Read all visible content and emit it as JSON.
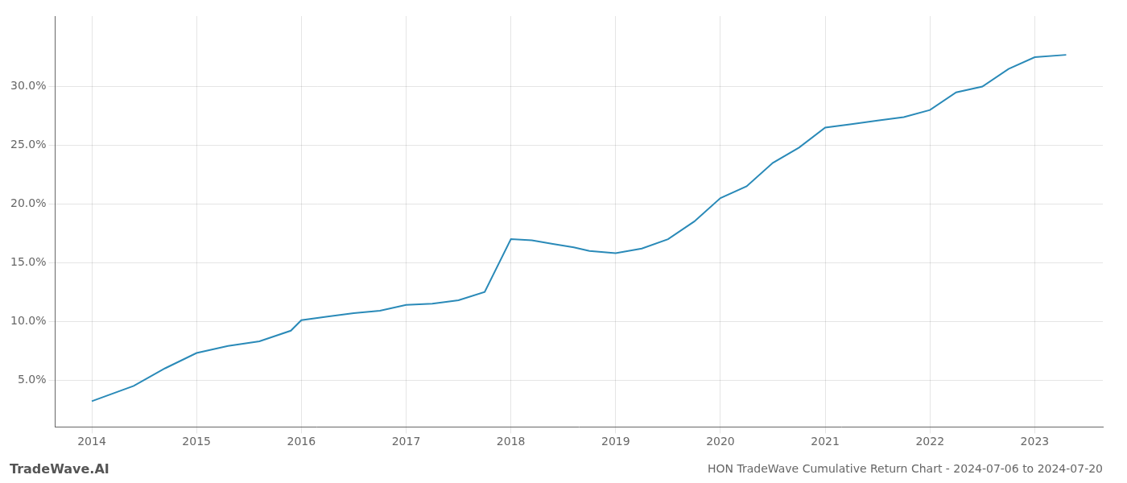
{
  "chart_data": {
    "type": "line",
    "title": "HON TradeWave Cumulative Return Chart - 2024-07-06 to 2024-07-20",
    "annotations": [
      {
        "text": "TradeWave.AI"
      }
    ],
    "x": [
      2014.0,
      2014.4,
      2014.7,
      2015.0,
      2015.3,
      2015.6,
      2015.9,
      2016.0,
      2016.25,
      2016.5,
      2016.75,
      2017.0,
      2017.25,
      2017.5,
      2017.75,
      2018.0,
      2018.2,
      2018.4,
      2018.6,
      2018.75,
      2019.0,
      2019.25,
      2019.5,
      2019.75,
      2020.0,
      2020.25,
      2020.5,
      2020.75,
      2021.0,
      2021.25,
      2021.5,
      2021.75,
      2022.0,
      2022.25,
      2022.5,
      2022.75,
      2023.0,
      2023.3
    ],
    "values": [
      3.2,
      4.5,
      6.0,
      7.3,
      7.9,
      8.3,
      9.2,
      10.1,
      10.4,
      10.7,
      10.9,
      11.4,
      11.5,
      11.8,
      12.5,
      17.0,
      16.9,
      16.6,
      16.3,
      16.0,
      15.8,
      16.2,
      17.0,
      18.5,
      20.5,
      21.5,
      23.5,
      24.8,
      26.5,
      26.8,
      27.1,
      27.4,
      28.0,
      29.5,
      30.0,
      31.5,
      32.5,
      32.7
    ],
    "color": "#2a8ab8",
    "xlim": [
      2013.65,
      2023.65
    ],
    "xticks": [
      2014,
      2015,
      2016,
      2017,
      2018,
      2019,
      2020,
      2021,
      2022,
      2023
    ],
    "ylim": [
      1.0,
      36.0
    ],
    "yticks": [
      {
        "value": 5.0,
        "label": "5.0%"
      },
      {
        "value": 10.0,
        "label": "10.0%"
      },
      {
        "value": 15.0,
        "label": "15.0%"
      },
      {
        "value": 20.0,
        "label": "20.0%"
      },
      {
        "value": 25.0,
        "label": "25.0%"
      },
      {
        "value": 30.0,
        "label": "30.0%"
      }
    ],
    "grid": true
  }
}
